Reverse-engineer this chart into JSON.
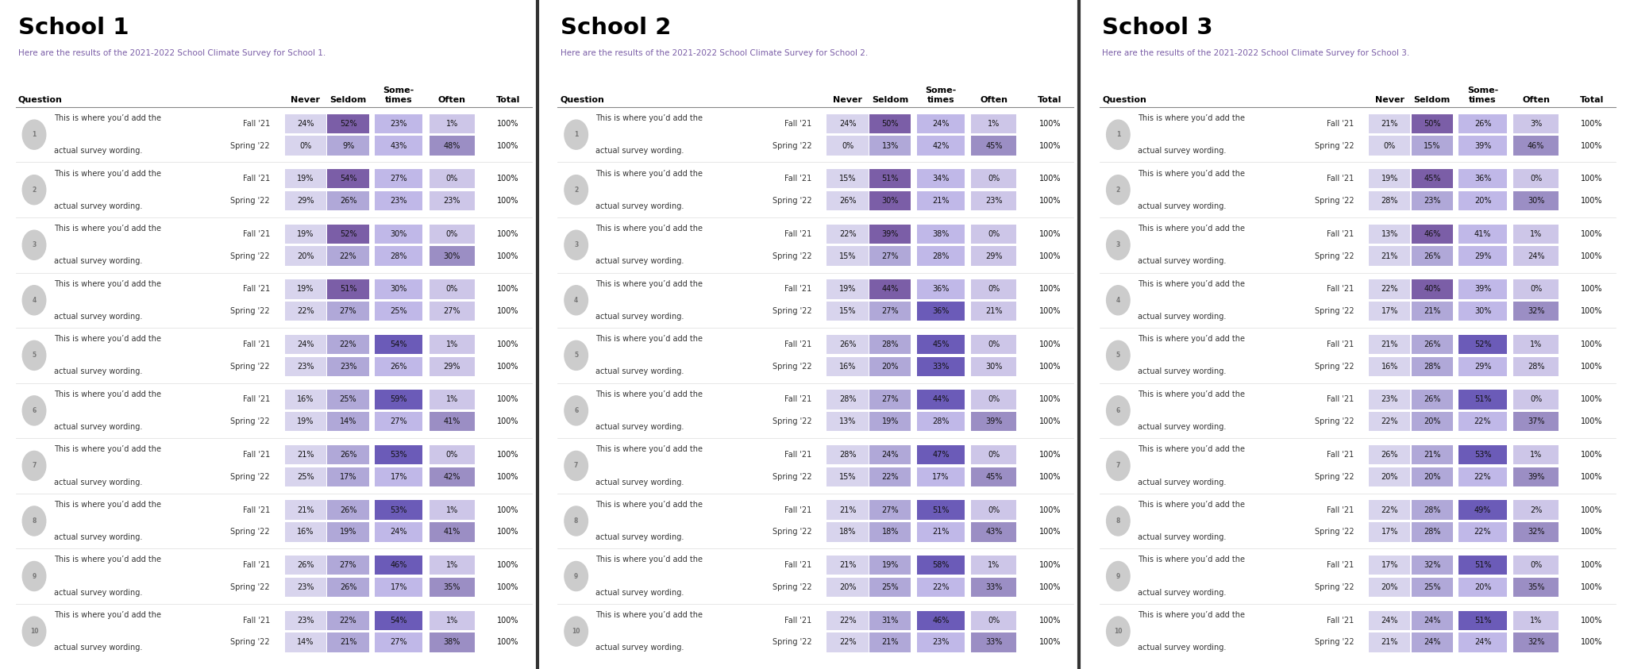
{
  "schools": [
    {
      "title": "School 1",
      "subtitle": "Here are the results of the 2021-2022 School Climate Survey for School 1.",
      "questions": [
        {
          "fall": [
            24,
            52,
            23,
            1
          ],
          "spring": [
            0,
            9,
            43,
            48
          ]
        },
        {
          "fall": [
            19,
            54,
            27,
            0
          ],
          "spring": [
            29,
            26,
            23,
            23
          ]
        },
        {
          "fall": [
            19,
            52,
            30,
            0
          ],
          "spring": [
            20,
            22,
            28,
            30
          ]
        },
        {
          "fall": [
            19,
            51,
            30,
            0
          ],
          "spring": [
            22,
            27,
            25,
            27
          ]
        },
        {
          "fall": [
            24,
            22,
            54,
            1
          ],
          "spring": [
            23,
            23,
            26,
            29
          ]
        },
        {
          "fall": [
            16,
            25,
            59,
            1
          ],
          "spring": [
            19,
            14,
            27,
            41
          ]
        },
        {
          "fall": [
            21,
            26,
            53,
            0
          ],
          "spring": [
            25,
            17,
            17,
            42
          ]
        },
        {
          "fall": [
            21,
            26,
            53,
            1
          ],
          "spring": [
            16,
            19,
            24,
            41
          ]
        },
        {
          "fall": [
            26,
            27,
            46,
            1
          ],
          "spring": [
            23,
            26,
            17,
            35
          ]
        },
        {
          "fall": [
            23,
            22,
            54,
            1
          ],
          "spring": [
            14,
            21,
            27,
            38
          ]
        }
      ]
    },
    {
      "title": "School 2",
      "subtitle": "Here are the results of the 2021-2022 School Climate Survey for School 2.",
      "questions": [
        {
          "fall": [
            24,
            50,
            24,
            1
          ],
          "spring": [
            0,
            13,
            42,
            45
          ]
        },
        {
          "fall": [
            15,
            51,
            34,
            0
          ],
          "spring": [
            26,
            30,
            21,
            23
          ]
        },
        {
          "fall": [
            22,
            39,
            38,
            0
          ],
          "spring": [
            15,
            27,
            28,
            29
          ]
        },
        {
          "fall": [
            19,
            44,
            36,
            0
          ],
          "spring": [
            15,
            27,
            36,
            21
          ]
        },
        {
          "fall": [
            26,
            28,
            45,
            0
          ],
          "spring": [
            16,
            20,
            33,
            30
          ]
        },
        {
          "fall": [
            28,
            27,
            44,
            0
          ],
          "spring": [
            13,
            19,
            28,
            39
          ]
        },
        {
          "fall": [
            28,
            24,
            47,
            0
          ],
          "spring": [
            15,
            22,
            17,
            45
          ]
        },
        {
          "fall": [
            21,
            27,
            51,
            0
          ],
          "spring": [
            18,
            18,
            21,
            43
          ]
        },
        {
          "fall": [
            21,
            19,
            58,
            1
          ],
          "spring": [
            20,
            25,
            22,
            33
          ]
        },
        {
          "fall": [
            22,
            31,
            46,
            0
          ],
          "spring": [
            22,
            21,
            23,
            33
          ]
        }
      ]
    },
    {
      "title": "School 3",
      "subtitle": "Here are the results of the 2021-2022 School Climate Survey for School 3.",
      "questions": [
        {
          "fall": [
            21,
            50,
            26,
            3
          ],
          "spring": [
            0,
            15,
            39,
            46
          ]
        },
        {
          "fall": [
            19,
            45,
            36,
            0
          ],
          "spring": [
            28,
            23,
            20,
            30
          ]
        },
        {
          "fall": [
            13,
            46,
            41,
            1
          ],
          "spring": [
            21,
            26,
            29,
            24
          ]
        },
        {
          "fall": [
            22,
            40,
            39,
            0
          ],
          "spring": [
            17,
            21,
            30,
            32
          ]
        },
        {
          "fall": [
            21,
            26,
            52,
            1
          ],
          "spring": [
            16,
            28,
            29,
            28
          ]
        },
        {
          "fall": [
            23,
            26,
            51,
            0
          ],
          "spring": [
            22,
            20,
            22,
            37
          ]
        },
        {
          "fall": [
            26,
            21,
            53,
            1
          ],
          "spring": [
            20,
            20,
            22,
            39
          ]
        },
        {
          "fall": [
            22,
            28,
            49,
            2
          ],
          "spring": [
            17,
            28,
            22,
            32
          ]
        },
        {
          "fall": [
            17,
            32,
            51,
            0
          ],
          "spring": [
            20,
            25,
            20,
            35
          ]
        },
        {
          "fall": [
            24,
            24,
            51,
            1
          ],
          "spring": [
            21,
            24,
            24,
            32
          ]
        }
      ]
    }
  ],
  "col_headers": [
    "Never",
    "Seldom",
    "Some-\ntimes",
    "Often",
    "Total"
  ],
  "question_text_line1": "This is where you’d add the",
  "question_text_line2": "actual survey wording.",
  "bg_color": "#ffffff",
  "panel_divider_color": "#333333",
  "subtitle_color": "#7B5EA7",
  "text_dark": "#222222",
  "header_line_color": "#888888",
  "row_sep_color": "#dddddd",
  "circle_bg": "#cccccc",
  "circle_text": "#777777",
  "cell_colors": {
    "col0_light": "#d8d4ed",
    "col0_dark": "#b8b2e0",
    "col1_light": "#b0a8d8",
    "col1_dark": "#7B5EA7",
    "col2_light": "#c0b8e8",
    "col2_dark": "#6B5BB8",
    "col3_light": "#cdc6e8",
    "col3_dark": "#9b8ec4"
  },
  "highlight_threshold": 30
}
